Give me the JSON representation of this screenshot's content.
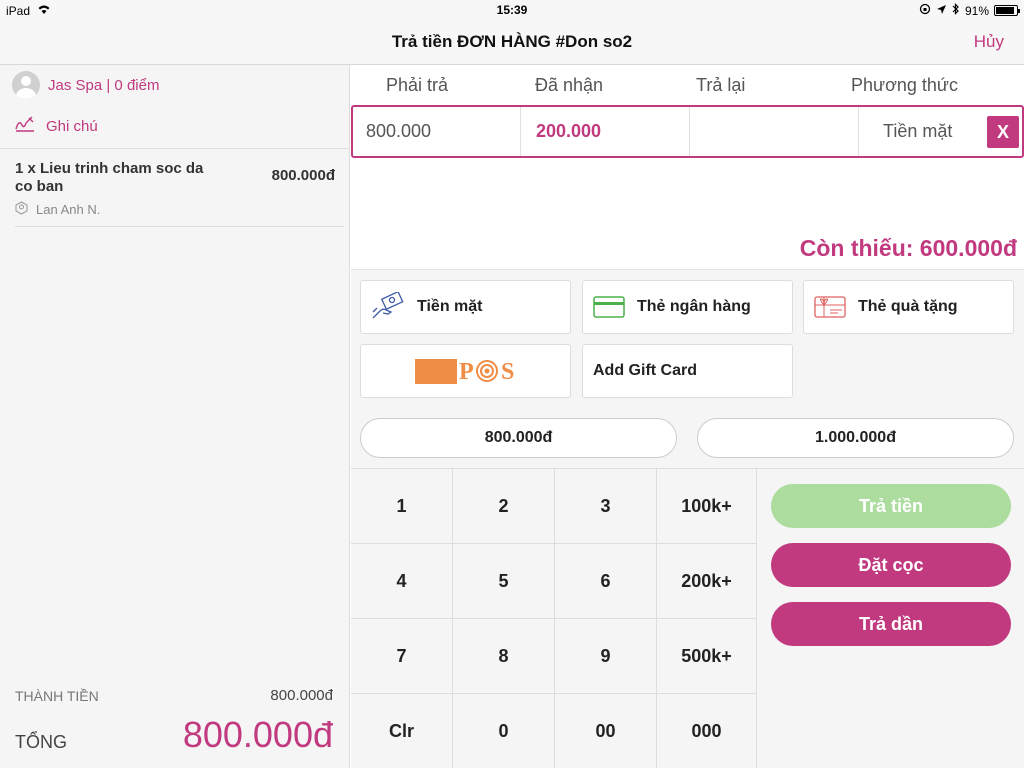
{
  "status_bar": {
    "device": "iPad",
    "time": "15:39",
    "battery_percent": "91%",
    "battery_level": 0.91
  },
  "nav": {
    "title": "Trả tiền ĐƠN HÀNG #Don so2",
    "cancel_label": "Hủy"
  },
  "customer": {
    "name": "Jas Spa | 0 điểm"
  },
  "note": {
    "label": "Ghi chú"
  },
  "order_items": [
    {
      "description": "1 x Lieu trinh cham soc da co ban",
      "price": "800.000đ",
      "staff": "Lan Anh N."
    }
  ],
  "summary": {
    "subtotal_label": "THÀNH TIỀN",
    "subtotal_value": "800.000đ",
    "total_label": "TỔNG",
    "total_value": "800.000đ"
  },
  "payment_table": {
    "headers": [
      "Phải trả",
      "Đã nhận",
      "Trả lại",
      "Phương thức"
    ],
    "row": {
      "due": "800.000",
      "received": "200.000",
      "change": "",
      "method": "Tiền mặt",
      "remove_label": "X"
    }
  },
  "shortfall": "Còn thiếu: 600.000đ",
  "payment_methods": {
    "cash": "Tiền mặt",
    "bank_card": "Thẻ ngân hàng",
    "gift_card": "Thẻ quà tặng",
    "pos_logo_text": "P  S",
    "add_gift_card": "Add Gift Card"
  },
  "quick_amounts": [
    "800.000đ",
    "1.000.000đ"
  ],
  "keypad": [
    [
      "1",
      "2",
      "3",
      "100k+"
    ],
    [
      "4",
      "5",
      "6",
      "200k+"
    ],
    [
      "7",
      "8",
      "9",
      "500k+"
    ],
    [
      "Clr",
      "0",
      "00",
      "000"
    ]
  ],
  "actions": {
    "pay": "Trả tiền",
    "deposit": "Đặt cọc",
    "installment": "Trả dần"
  },
  "colors": {
    "accent": "#c1397f",
    "pay_disabled": "#acdc9e",
    "background": "#f5f5f5"
  }
}
